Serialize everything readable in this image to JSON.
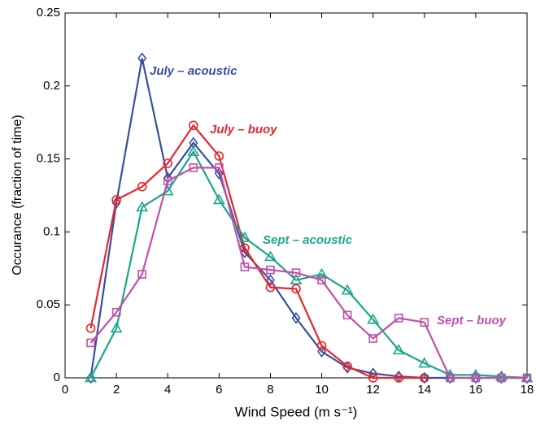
{
  "chart_data": {
    "type": "line",
    "x": [
      1,
      2,
      3,
      4,
      5,
      6,
      7,
      8,
      9,
      10,
      11,
      12,
      13,
      14,
      15,
      16,
      17,
      18
    ],
    "xlabel": "Wind Speed (m s⁻¹)",
    "ylabel": "Occurance (fraction of time)",
    "xlim": [
      0,
      18
    ],
    "xticks": [
      0,
      2,
      4,
      6,
      8,
      10,
      12,
      14,
      16,
      18
    ],
    "ylim": [
      0,
      0.25
    ],
    "yticks": [
      0,
      0.05,
      0.1,
      0.15,
      0.2,
      0.25
    ],
    "series": [
      {
        "name": "July – acoustic",
        "color": "#3a4fa0",
        "marker": "diamond",
        "values": [
          0,
          0.12,
          0.219,
          0.137,
          0.161,
          0.14,
          0.086,
          0.067,
          0.041,
          0.018,
          0.007,
          0.003,
          0.001,
          0,
          0,
          0,
          0,
          0
        ]
      },
      {
        "name": "July – buoy",
        "color": "#e8262d",
        "marker": "circle",
        "values": [
          0.034,
          0.122,
          0.131,
          0.147,
          0.173,
          0.152,
          0.089,
          0.062,
          0.061,
          0.022,
          0.008,
          0,
          0,
          0,
          null,
          null,
          null,
          null
        ]
      },
      {
        "name": "Sept – acoustic",
        "color": "#1aa88a",
        "marker": "triangle",
        "values": [
          0,
          0.034,
          0.117,
          0.128,
          0.155,
          0.122,
          0.096,
          0.083,
          0.067,
          0.071,
          0.06,
          0.04,
          0.019,
          0.01,
          0.002,
          0.002,
          0.001,
          0
        ]
      },
      {
        "name": "Sept – buoy",
        "color": "#c050a8",
        "marker": "square",
        "values": [
          0.024,
          0.045,
          0.071,
          0.135,
          0.144,
          0.144,
          0.076,
          0.074,
          0.072,
          0.067,
          0.043,
          0.027,
          0.041,
          0.038,
          0,
          0,
          0,
          0
        ]
      }
    ]
  }
}
